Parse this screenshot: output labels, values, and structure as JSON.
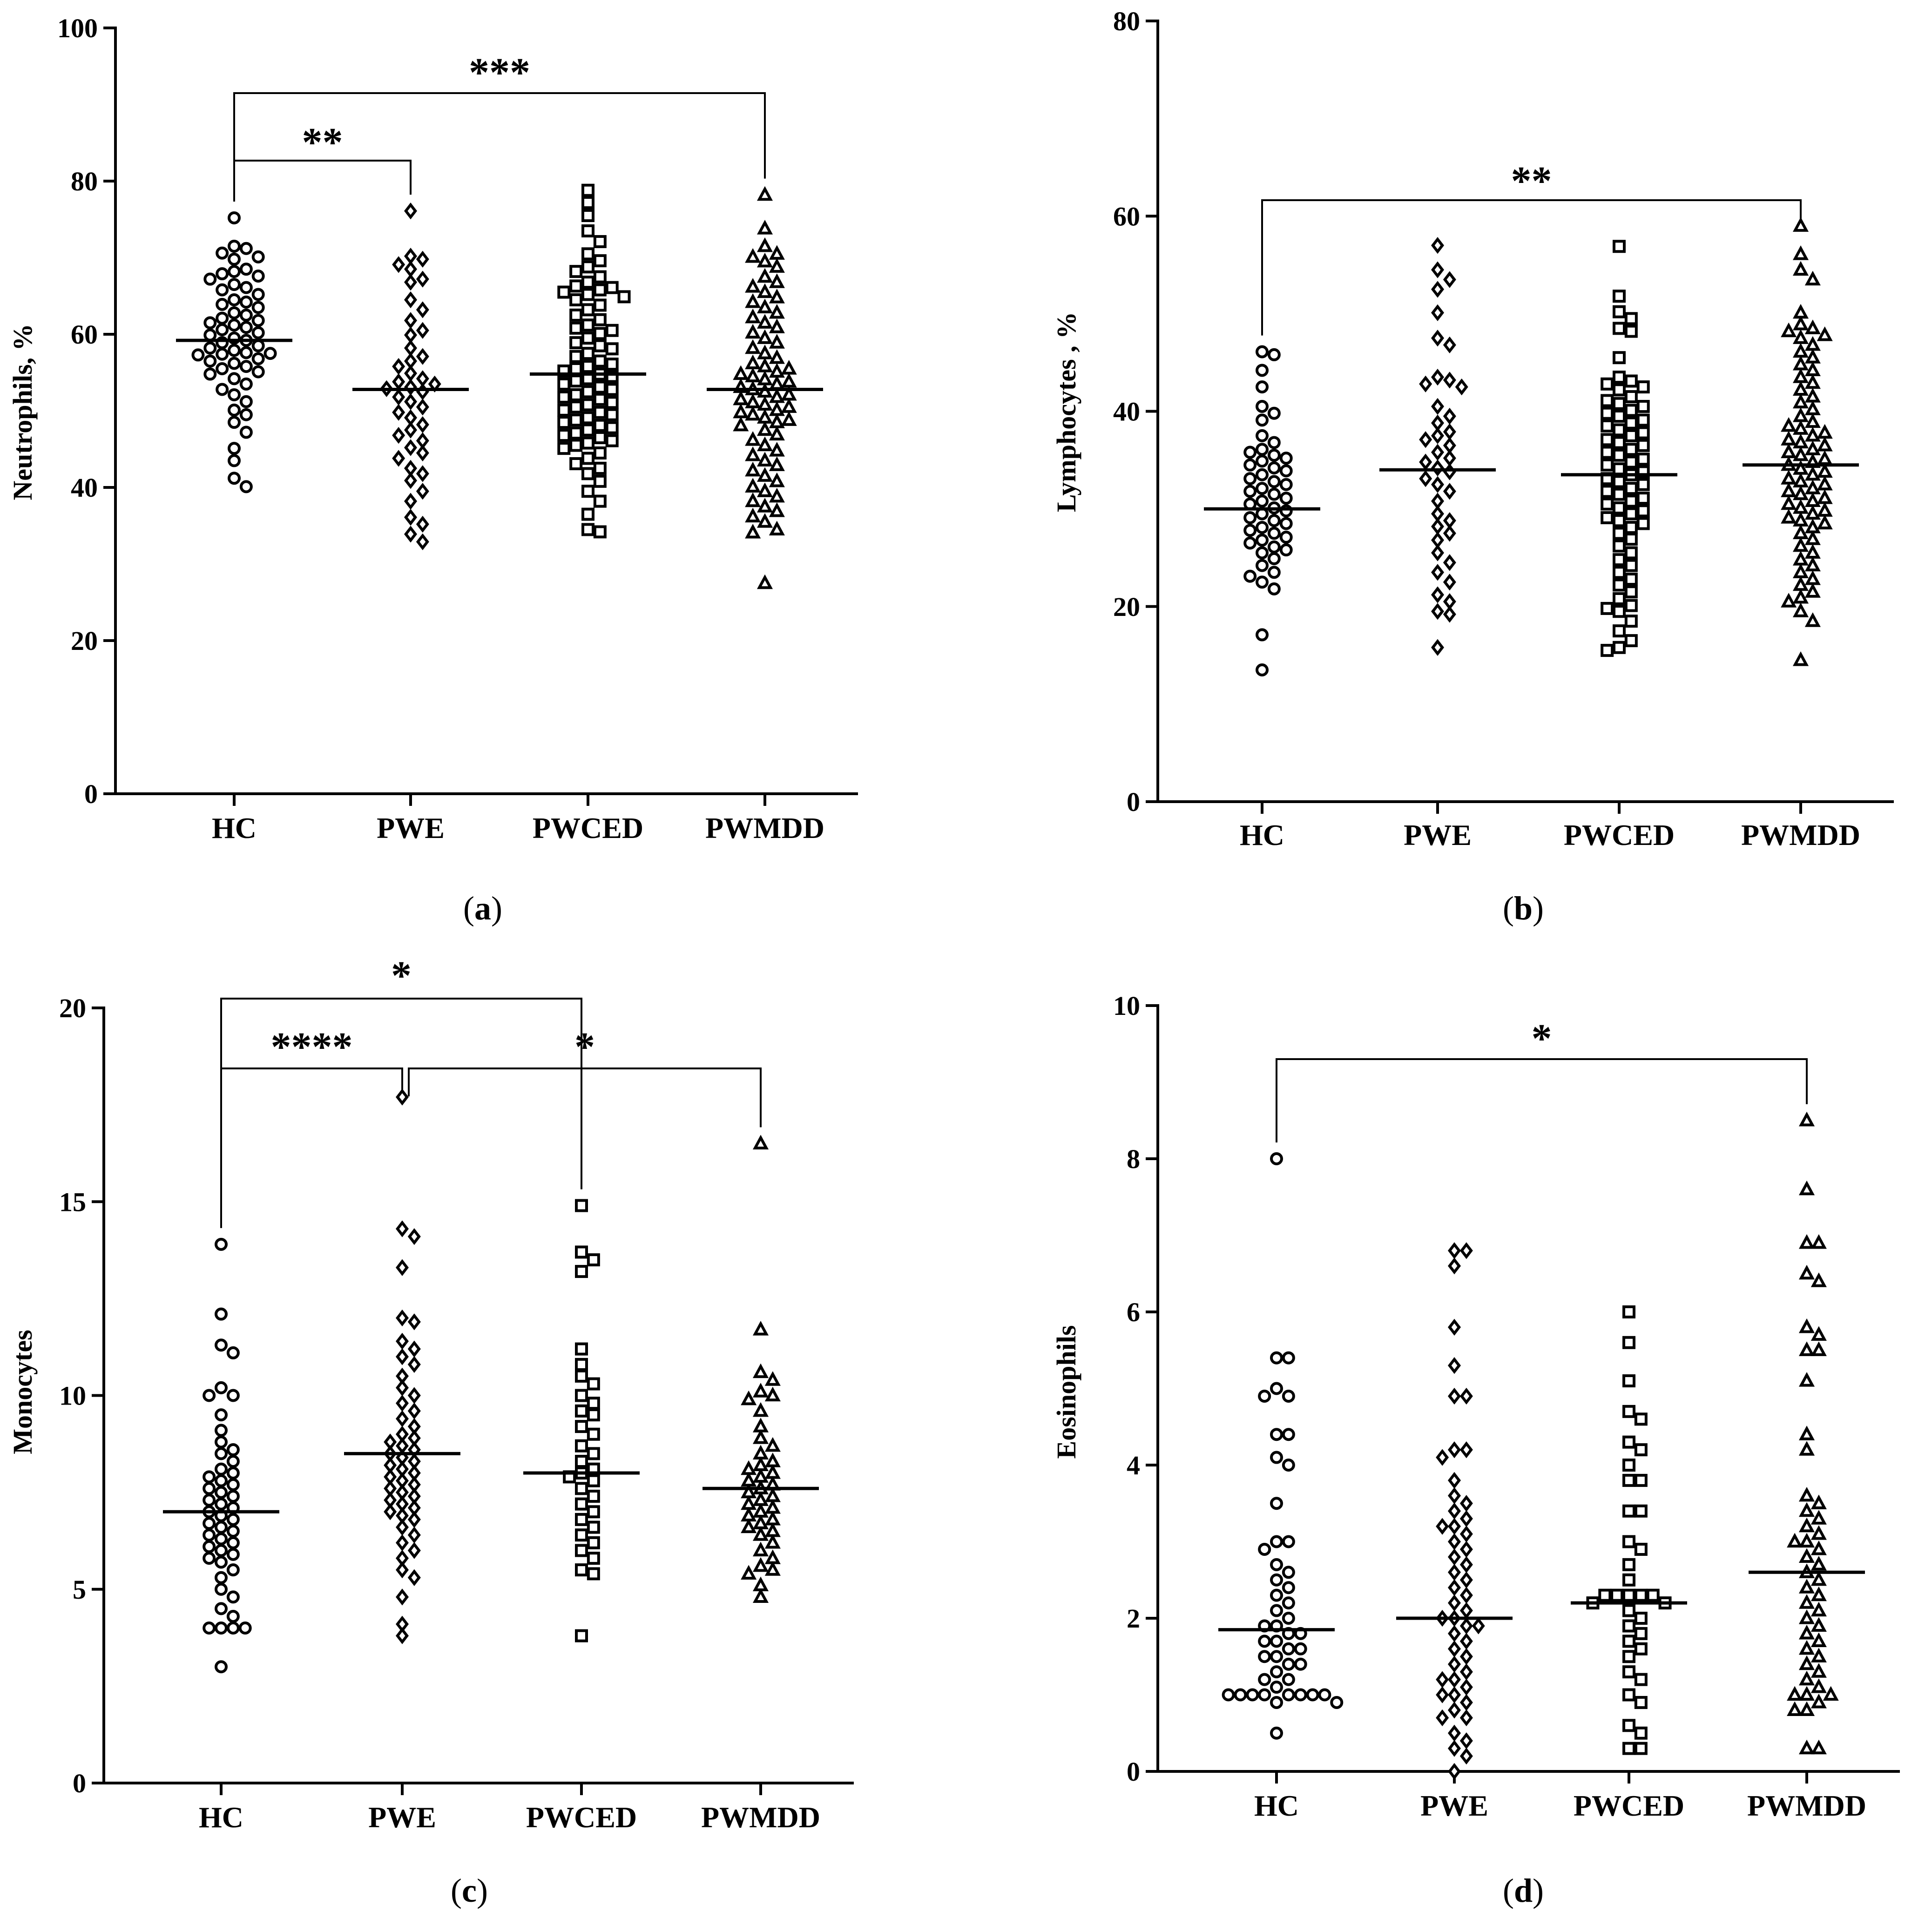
{
  "chart_data": [
    {
      "id": "a",
      "type": "scatter",
      "panel_label": "a",
      "ylabel": "Neutrophils, %",
      "ylim": [
        0,
        100
      ],
      "yticks": [
        0,
        20,
        40,
        60,
        80,
        100
      ],
      "categories": [
        "HC",
        "PWE",
        "PWCED",
        "PWMDD"
      ],
      "markers": [
        "circle",
        "diamond",
        "square",
        "triangle"
      ],
      "medians": [
        59.2,
        52.8,
        54.8,
        52.8
      ],
      "significance": [
        {
          "from": 0,
          "to": 1,
          "label": "**"
        },
        {
          "from": 0,
          "to": 3,
          "label": "***"
        }
      ],
      "series": [
        {
          "name": "HC",
          "values": [
            75.2,
            71.5,
            71.2,
            70.6,
            70.1,
            69.8,
            68.5,
            68.2,
            67.9,
            67.6,
            67.2,
            66.5,
            66.1,
            65.8,
            65.2,
            64.5,
            64.2,
            63.9,
            63.5,
            62.8,
            62.5,
            62.1,
            61.8,
            61.5,
            61.2,
            60.9,
            60.6,
            60.2,
            59.9,
            59.5,
            59.2,
            58.9,
            58.5,
            58.2,
            57.9,
            57.6,
            57.5,
            57.4,
            57.3,
            56.8,
            56.5,
            56.2,
            55.8,
            55.5,
            55.1,
            54.8,
            54.2,
            53.5,
            52.8,
            52.1,
            51.2,
            50.1,
            49.5,
            48.5,
            47.2,
            45.1,
            43.5,
            41.2,
            40.1
          ]
        },
        {
          "name": "PWE",
          "values": [
            76.1,
            70.2,
            69.8,
            69.1,
            68.5,
            67.2,
            66.8,
            64.5,
            63.2,
            61.8,
            60.5,
            59.9,
            58.2,
            57.1,
            56.5,
            55.8,
            54.9,
            54.2,
            53.8,
            53.5,
            53.1,
            52.9,
            52.5,
            51.8,
            51.2,
            50.5,
            49.8,
            49.1,
            48.2,
            47.5,
            46.8,
            46.1,
            45.2,
            44.5,
            43.8,
            42.5,
            41.8,
            40.9,
            39.5,
            38.2,
            36.1,
            35.2,
            33.9,
            32.9
          ]
        },
        {
          "name": "PWCED",
          "values": [
            78.8,
            77.2,
            75.5,
            73.5,
            72.1,
            70.5,
            69.6,
            68.8,
            68.2,
            67.5,
            66.8,
            66.3,
            66.1,
            65.8,
            65.5,
            65.2,
            64.9,
            64.5,
            63.8,
            63.2,
            62.5,
            61.9,
            61.2,
            60.8,
            60.5,
            60.1,
            59.5,
            58.9,
            58.5,
            58.1,
            57.5,
            57.1,
            56.5,
            56.1,
            55.8,
            55.5,
            55.2,
            54.8,
            54.5,
            54.2,
            53.9,
            53.5,
            53.1,
            52.8,
            52.5,
            52.1,
            51.8,
            51.5,
            51.1,
            50.8,
            50.5,
            50.1,
            49.8,
            49.5,
            49.1,
            48.8,
            48.5,
            48.1,
            47.8,
            47.5,
            47.1,
            46.8,
            46.5,
            46.1,
            45.8,
            45.5,
            45.1,
            44.5,
            43.8,
            43.1,
            42.5,
            41.8,
            40.8,
            39.5,
            38.2,
            36.5,
            34.5,
            34.2
          ]
        },
        {
          "name": "PWMDD",
          "values": [
            78.2,
            73.8,
            71.5,
            70.5,
            70.1,
            69.5,
            68.8,
            67.5,
            66.8,
            66.2,
            65.5,
            64.8,
            64.2,
            63.5,
            62.8,
            62.2,
            61.5,
            60.9,
            60.2,
            59.5,
            58.9,
            58.2,
            57.5,
            56.9,
            56.2,
            55.8,
            55.5,
            55.1,
            54.8,
            54.5,
            54.1,
            53.8,
            53.5,
            53.1,
            52.8,
            52.5,
            52.1,
            51.8,
            51.5,
            51.1,
            50.8,
            50.5,
            50.1,
            49.8,
            49.5,
            49.1,
            48.8,
            48.5,
            48.1,
            47.5,
            46.9,
            46.2,
            45.5,
            44.8,
            44.2,
            43.5,
            42.9,
            42.2,
            41.5,
            40.8,
            40.1,
            39.5,
            38.8,
            38.2,
            37.5,
            36.9,
            36.2,
            35.5,
            34.5,
            34.1,
            27.5
          ]
        }
      ]
    },
    {
      "id": "b",
      "type": "scatter",
      "panel_label": "b",
      "ylabel": "Lymphocytes , %",
      "ylim": [
        0,
        80
      ],
      "yticks": [
        0,
        20,
        40,
        60,
        80
      ],
      "categories": [
        "HC",
        "PWE",
        "PWCED",
        "PWMDD"
      ],
      "markers": [
        "circle",
        "diamond",
        "square",
        "triangle"
      ],
      "medians": [
        30.0,
        34.0,
        33.5,
        34.5
      ],
      "significance": [
        {
          "from": 0,
          "to": 3,
          "label": "**"
        }
      ],
      "series": [
        {
          "name": "HC",
          "values": [
            46.1,
            45.8,
            44.2,
            42.5,
            40.5,
            39.8,
            39.1,
            37.5,
            36.8,
            36.1,
            35.8,
            35.5,
            35.2,
            34.9,
            34.5,
            34.2,
            33.9,
            33.5,
            33.1,
            32.8,
            32.5,
            32.1,
            31.8,
            31.5,
            31.1,
            30.8,
            30.5,
            30.1,
            29.8,
            29.5,
            29.1,
            28.8,
            28.5,
            28.1,
            27.8,
            27.5,
            27.1,
            26.8,
            26.5,
            26.1,
            25.8,
            25.5,
            24.9,
            24.2,
            23.5,
            23.1,
            22.5,
            21.8,
            17.1,
            13.5
          ]
        },
        {
          "name": "PWE",
          "values": [
            57.0,
            54.5,
            53.5,
            52.5,
            50.1,
            47.5,
            46.8,
            43.5,
            43.2,
            42.8,
            42.5,
            40.5,
            39.5,
            38.8,
            37.9,
            37.5,
            37.1,
            36.5,
            35.8,
            35.2,
            34.8,
            34.2,
            33.8,
            33.1,
            32.5,
            31.8,
            30.8,
            29.5,
            28.8,
            28.2,
            27.5,
            26.8,
            25.5,
            24.5,
            23.5,
            22.5,
            21.2,
            20.5,
            19.5,
            19.2,
            15.8
          ]
        },
        {
          "name": "PWCED",
          "values": [
            56.9,
            51.8,
            50.2,
            49.5,
            48.5,
            48.2,
            45.5,
            43.5,
            43.1,
            42.8,
            42.5,
            42.2,
            41.5,
            41.1,
            40.8,
            40.5,
            40.1,
            39.8,
            39.5,
            39.1,
            38.8,
            38.5,
            38.1,
            37.8,
            37.5,
            37.1,
            36.8,
            36.5,
            36.1,
            35.8,
            35.5,
            35.1,
            34.8,
            34.5,
            34.1,
            33.8,
            33.5,
            33.1,
            32.8,
            32.5,
            32.1,
            31.8,
            31.5,
            31.1,
            30.8,
            30.5,
            30.1,
            29.8,
            29.5,
            29.1,
            28.8,
            28.5,
            28.1,
            27.5,
            26.9,
            26.2,
            25.5,
            24.8,
            24.2,
            23.5,
            22.8,
            22.2,
            21.5,
            20.8,
            20.1,
            19.8,
            19.5,
            18.5,
            17.5,
            16.5,
            15.8,
            15.5
          ]
        },
        {
          "name": "PWMDD",
          "values": [
            59.0,
            56.1,
            54.5,
            53.5,
            50.1,
            48.9,
            48.5,
            48.2,
            47.8,
            47.5,
            46.8,
            46.1,
            45.5,
            44.8,
            44.2,
            43.5,
            42.9,
            42.2,
            41.5,
            40.9,
            40.2,
            39.5,
            38.9,
            38.5,
            38.2,
            37.8,
            37.5,
            37.1,
            36.8,
            36.5,
            36.1,
            35.8,
            35.5,
            35.1,
            34.8,
            34.5,
            34.1,
            33.8,
            33.5,
            33.1,
            32.8,
            32.5,
            32.1,
            31.8,
            31.5,
            31.1,
            30.8,
            30.5,
            30.1,
            29.8,
            29.5,
            29.1,
            28.8,
            28.5,
            28.1,
            27.5,
            26.9,
            26.2,
            25.5,
            24.8,
            24.2,
            23.5,
            22.8,
            22.2,
            21.5,
            20.9,
            20.5,
            19.5,
            18.5,
            14.5
          ]
        }
      ]
    },
    {
      "id": "c",
      "type": "scatter",
      "panel_label": "c",
      "ylabel": "Monocytes",
      "ylim": [
        0,
        20
      ],
      "yticks": [
        0,
        5,
        10,
        15,
        20
      ],
      "categories": [
        "HC",
        "PWE",
        "PWCED",
        "PWMDD"
      ],
      "markers": [
        "circle",
        "diamond",
        "square",
        "triangle"
      ],
      "medians": [
        7.0,
        8.5,
        8.0,
        7.6
      ],
      "significance": [
        {
          "from": 0,
          "to": 2,
          "label": "*"
        },
        {
          "from": 0,
          "to": 1,
          "label": "****"
        },
        {
          "from": 1,
          "to": 3,
          "label": "*"
        }
      ],
      "series": [
        {
          "name": "HC",
          "values": [
            13.9,
            12.1,
            11.3,
            11.1,
            10.2,
            10.0,
            10.0,
            9.5,
            9.1,
            8.8,
            8.6,
            8.5,
            8.3,
            8.1,
            8.0,
            7.9,
            7.8,
            7.7,
            7.6,
            7.5,
            7.4,
            7.3,
            7.2,
            7.1,
            7.0,
            6.9,
            6.8,
            6.7,
            6.6,
            6.5,
            6.4,
            6.3,
            6.2,
            6.1,
            6.0,
            5.9,
            5.8,
            5.7,
            5.5,
            5.3,
            5.0,
            4.8,
            4.5,
            4.3,
            4.0,
            4.0,
            4.0,
            4.0,
            3.0
          ]
        },
        {
          "name": "PWE",
          "values": [
            17.7,
            14.3,
            14.1,
            13.3,
            12.0,
            11.9,
            11.4,
            11.2,
            11.0,
            10.8,
            10.5,
            10.2,
            10.0,
            9.8,
            9.6,
            9.4,
            9.2,
            9.0,
            8.9,
            8.8,
            8.7,
            8.6,
            8.5,
            8.4,
            8.3,
            8.2,
            8.1,
            8.0,
            7.9,
            7.8,
            7.7,
            7.6,
            7.5,
            7.4,
            7.3,
            7.2,
            7.1,
            7.0,
            6.9,
            6.8,
            6.6,
            6.4,
            6.2,
            6.0,
            5.8,
            5.5,
            5.3,
            4.8,
            4.1,
            3.8
          ]
        },
        {
          "name": "PWCED",
          "values": [
            14.9,
            13.7,
            13.5,
            13.2,
            11.2,
            10.8,
            10.5,
            10.3,
            10.0,
            9.8,
            9.6,
            9.5,
            9.2,
            9.0,
            8.7,
            8.5,
            8.3,
            8.1,
            8.0,
            7.9,
            7.8,
            7.6,
            7.4,
            7.2,
            7.0,
            6.8,
            6.6,
            6.4,
            6.2,
            6.0,
            5.8,
            5.5,
            5.4,
            3.8
          ]
        },
        {
          "name": "PWMDD",
          "values": [
            16.5,
            11.7,
            10.6,
            10.4,
            10.1,
            10.0,
            9.9,
            9.6,
            9.2,
            8.9,
            8.7,
            8.5,
            8.3,
            8.2,
            8.1,
            8.0,
            7.9,
            7.8,
            7.7,
            7.6,
            7.5,
            7.4,
            7.3,
            7.2,
            7.1,
            7.0,
            6.9,
            6.8,
            6.7,
            6.6,
            6.5,
            6.4,
            6.2,
            6.0,
            5.8,
            5.6,
            5.5,
            5.4,
            5.1,
            4.8
          ]
        }
      ]
    },
    {
      "id": "d",
      "type": "scatter",
      "panel_label": "d",
      "ylabel": "Eosinophils",
      "ylim": [
        0,
        10
      ],
      "yticks": [
        0,
        2,
        4,
        6,
        8,
        10
      ],
      "categories": [
        "HC",
        "PWE",
        "PWCED",
        "PWMDD"
      ],
      "markers": [
        "circle",
        "diamond",
        "square",
        "triangle"
      ],
      "medians": [
        1.85,
        2.0,
        2.2,
        2.6
      ],
      "significance": [
        {
          "from": 0,
          "to": 3,
          "label": "*"
        }
      ],
      "series": [
        {
          "name": "HC",
          "values": [
            8.0,
            5.4,
            5.4,
            5.0,
            4.9,
            4.9,
            4.4,
            4.4,
            4.1,
            4.0,
            3.5,
            3.0,
            3.0,
            2.9,
            2.7,
            2.6,
            2.5,
            2.4,
            2.3,
            2.2,
            2.1,
            2.0,
            1.9,
            1.9,
            1.8,
            1.8,
            1.7,
            1.7,
            1.6,
            1.6,
            1.5,
            1.5,
            1.4,
            1.4,
            1.3,
            1.2,
            1.2,
            1.1,
            1.0,
            1.0,
            1.0,
            1.0,
            1.0,
            1.0,
            1.0,
            1.0,
            0.9,
            0.9,
            0.5
          ]
        },
        {
          "name": "PWE",
          "values": [
            6.8,
            6.8,
            6.6,
            5.8,
            5.3,
            4.9,
            4.9,
            4.2,
            4.2,
            4.1,
            3.8,
            3.6,
            3.5,
            3.4,
            3.3,
            3.2,
            3.2,
            3.1,
            3.0,
            2.9,
            2.8,
            2.7,
            2.6,
            2.5,
            2.4,
            2.3,
            2.2,
            2.1,
            2.0,
            2.0,
            1.9,
            1.9,
            1.8,
            1.7,
            1.6,
            1.5,
            1.4,
            1.3,
            1.2,
            1.2,
            1.1,
            1.0,
            1.0,
            0.9,
            0.8,
            0.7,
            0.7,
            0.5,
            0.4,
            0.3,
            0.2,
            0.0
          ]
        },
        {
          "name": "PWCED",
          "values": [
            6.0,
            5.6,
            5.1,
            4.7,
            4.6,
            4.3,
            4.2,
            4.0,
            3.8,
            3.8,
            3.4,
            3.4,
            3.0,
            2.9,
            2.7,
            2.5,
            2.3,
            2.3,
            2.3,
            2.3,
            2.3,
            2.2,
            2.2,
            2.1,
            2.0,
            1.9,
            1.8,
            1.7,
            1.6,
            1.5,
            1.3,
            1.2,
            1.0,
            0.9,
            0.6,
            0.5,
            0.3,
            0.3
          ]
        },
        {
          "name": "PWMDD",
          "values": [
            8.5,
            7.6,
            6.9,
            6.9,
            6.5,
            6.4,
            5.8,
            5.7,
            5.5,
            5.5,
            5.1,
            4.4,
            4.2,
            3.6,
            3.5,
            3.4,
            3.3,
            3.2,
            3.1,
            3.0,
            3.0,
            2.9,
            2.8,
            2.7,
            2.6,
            2.5,
            2.4,
            2.3,
            2.2,
            2.1,
            2.0,
            1.9,
            1.8,
            1.7,
            1.6,
            1.5,
            1.4,
            1.3,
            1.2,
            1.1,
            1.0,
            1.0,
            1.0,
            0.9,
            0.8,
            0.8,
            0.3,
            0.3
          ]
        }
      ]
    }
  ]
}
